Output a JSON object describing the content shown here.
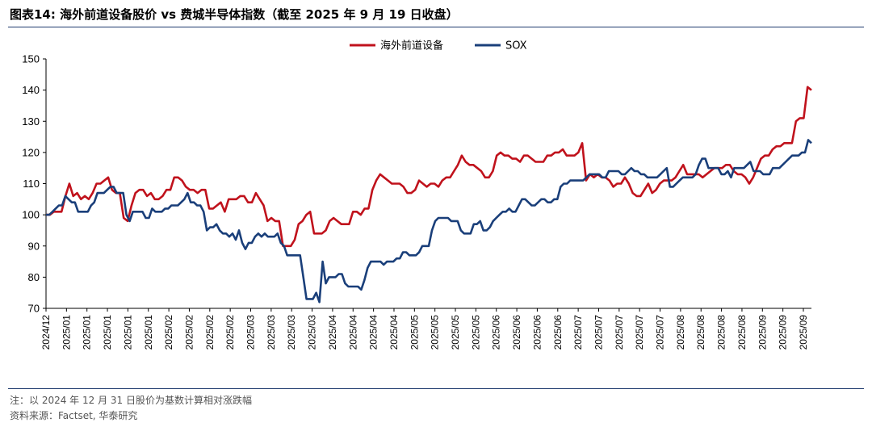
{
  "header": {
    "title": "图表14:  海外前道设备股价 vs 费城半导体指数（截至 2025 年 9 月 19 日收盘）"
  },
  "footer": {
    "note": "注：以 2024 年 12 月 31 日股价为基数计算相对涨跌幅",
    "source": "资料来源：Factset, 华泰研究"
  },
  "chart_data": {
    "type": "line",
    "ylim": [
      70,
      150
    ],
    "yticks": [
      70,
      80,
      90,
      100,
      110,
      120,
      130,
      140,
      150
    ],
    "legend_position": "top-center",
    "x_tick_labels": [
      "2024/12",
      "2025/01",
      "2025/01",
      "2025/01",
      "2025/01",
      "2025/01",
      "2025/02",
      "2025/02",
      "2025/02",
      "2025/02",
      "2025/03",
      "2025/03",
      "2025/03",
      "2025/03",
      "2025/04",
      "2025/04",
      "2025/04",
      "2025/04",
      "2025/05",
      "2025/05",
      "2025/05",
      "2025/05",
      "2025/06",
      "2025/06",
      "2025/06",
      "2025/06",
      "2025/07",
      "2025/07",
      "2025/07",
      "2025/07",
      "2025/07",
      "2025/08",
      "2025/08",
      "2025/08",
      "2025/08",
      "2025/09",
      "2025/09",
      "2025/09"
    ],
    "series": [
      {
        "name": "海外前道设备",
        "color": "#c0121c",
        "values": [
          100,
          100,
          101,
          101,
          101,
          106,
          110,
          106,
          107,
          105,
          106,
          105,
          107,
          110,
          110,
          111,
          112,
          108,
          107,
          107,
          99,
          98,
          103,
          107,
          108,
          108,
          106,
          107,
          105,
          105,
          106,
          108,
          108,
          112,
          112,
          111,
          109,
          108,
          108,
          107,
          108,
          108,
          102,
          102,
          103,
          104,
          101,
          105,
          105,
          105,
          106,
          106,
          104,
          104,
          107,
          105,
          103,
          98,
          99,
          98,
          98,
          90,
          90,
          90,
          92,
          97,
          98,
          100,
          101,
          94,
          94,
          94,
          95,
          98,
          99,
          98,
          97,
          97,
          97,
          101,
          101,
          100,
          102,
          102,
          108,
          111,
          113,
          112,
          111,
          110,
          110,
          110,
          109,
          107,
          107,
          108,
          111,
          110,
          109,
          110,
          110,
          109,
          111,
          112,
          112,
          114,
          116,
          119,
          117,
          116,
          116,
          115,
          114,
          112,
          112,
          114,
          119,
          120,
          119,
          119,
          118,
          118,
          117,
          119,
          119,
          118,
          117,
          117,
          117,
          119,
          119,
          120,
          120,
          121,
          119,
          119,
          119,
          120,
          123,
          111,
          113,
          112,
          113,
          112,
          112,
          111,
          109,
          110,
          110,
          112,
          110,
          107,
          106,
          106,
          108,
          110,
          107,
          108,
          110,
          111,
          111,
          111,
          112,
          114,
          116,
          113,
          113,
          113,
          113,
          112,
          113,
          114,
          115,
          115,
          115,
          116,
          116,
          114,
          113,
          113,
          112,
          110,
          112,
          115,
          118,
          119,
          119,
          121,
          122,
          122,
          123,
          123,
          123,
          130,
          131,
          131,
          141,
          140
        ]
      },
      {
        "name": "SOX",
        "color": "#1a3f7a",
        "values": [
          100,
          100,
          101,
          102,
          103,
          103,
          106,
          105,
          104,
          104,
          101,
          101,
          101,
          101,
          103,
          104,
          107,
          107,
          107,
          108,
          109,
          109,
          107,
          107,
          107,
          100,
          98,
          101,
          101,
          101,
          101,
          99,
          99,
          102,
          101,
          101,
          101,
          102,
          102,
          103,
          103,
          103,
          104,
          105,
          107,
          104,
          104,
          103,
          103,
          101,
          95,
          96,
          96,
          97,
          95,
          94,
          94,
          93,
          94,
          92,
          95,
          91,
          89,
          91,
          91,
          93,
          94,
          93,
          94,
          93,
          93,
          93,
          94,
          91,
          90,
          87,
          87,
          87,
          87,
          87,
          80,
          73,
          73,
          73,
          75,
          72,
          85,
          78,
          80,
          80,
          80,
          81,
          81,
          78,
          77,
          77,
          77,
          77,
          76,
          79,
          83,
          85,
          85,
          85,
          85,
          84,
          85,
          85,
          85,
          86,
          86,
          88,
          88,
          87,
          87,
          87,
          88,
          90,
          90,
          90,
          95,
          98,
          99,
          99,
          99,
          99,
          98,
          98,
          98,
          95,
          94,
          94,
          94,
          97,
          97,
          98,
          95,
          95,
          96,
          98,
          99,
          100,
          101,
          101,
          102,
          101,
          101,
          103,
          105,
          105,
          104,
          103,
          103,
          104,
          105,
          105,
          104,
          104,
          105,
          105,
          109,
          110,
          110,
          111,
          111,
          111,
          111,
          111,
          112,
          113,
          113,
          113,
          113,
          112,
          112,
          114,
          114,
          114,
          114,
          113,
          113,
          114,
          115,
          114,
          114,
          113,
          113,
          112,
          112,
          112,
          112,
          113,
          114,
          115,
          109,
          109,
          110,
          111,
          112,
          112,
          112,
          112,
          113,
          116,
          118,
          118,
          115,
          115,
          115,
          115,
          113,
          113,
          114,
          112,
          115,
          115,
          115,
          115,
          116,
          117,
          114,
          114,
          114,
          113,
          113,
          113,
          115,
          115,
          115,
          116,
          117,
          118,
          119,
          119,
          119,
          120,
          120,
          124,
          123
        ]
      }
    ]
  }
}
